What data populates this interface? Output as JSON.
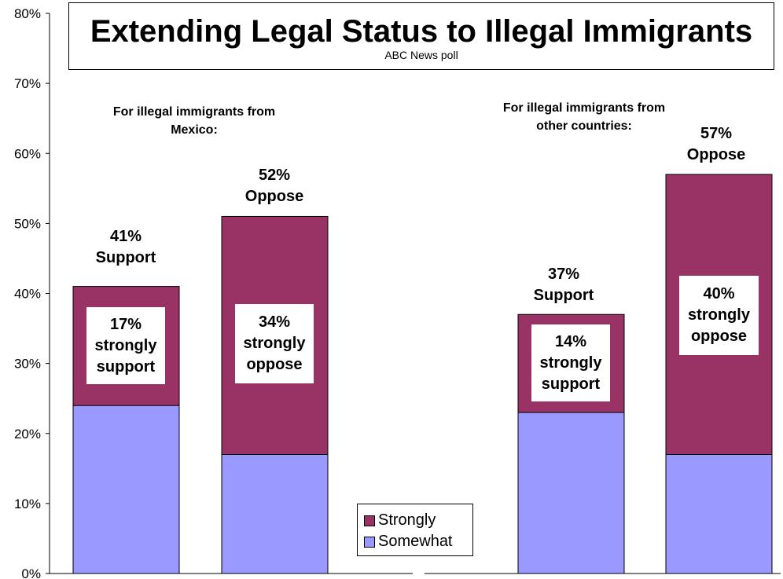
{
  "chart_data": {
    "type": "bar",
    "stacked": true,
    "title": "Extending Legal Status to Illegal Immigrants",
    "subtitle": "ABC News poll",
    "ylim": [
      0,
      80
    ],
    "yticks": [
      "0%",
      "10%",
      "20%",
      "30%",
      "40%",
      "50%",
      "60%",
      "70%",
      "80%"
    ],
    "grid": false,
    "legend_position": "bottom-center",
    "series": [
      {
        "name": "Somewhat",
        "color": "#9999ff",
        "values": [
          24,
          17,
          23,
          17
        ]
      },
      {
        "name": "Strongly",
        "color": "#993366",
        "values": [
          17,
          34,
          14,
          40
        ]
      }
    ],
    "groups": [
      {
        "label_line1": "For illegal immigrants from",
        "label_line2": "Mexico:"
      },
      {
        "label_line1": "For illegal immigrants from",
        "label_line2": "other countries:"
      }
    ],
    "bars": [
      {
        "total_pct": "41%",
        "total_word": "Support",
        "strong_pct": "17%",
        "strong_line2": "strongly",
        "strong_line3": "support"
      },
      {
        "total_pct": "52%",
        "total_word": "Oppose",
        "strong_pct": "34%",
        "strong_line2": "strongly",
        "strong_line3": "oppose"
      },
      {
        "total_pct": "37%",
        "total_word": "Support",
        "strong_pct": "14%",
        "strong_line2": "strongly",
        "strong_line3": "support"
      },
      {
        "total_pct": "57%",
        "total_word": "Oppose",
        "strong_pct": "40%",
        "strong_line2": "strongly",
        "strong_line3": "oppose"
      }
    ]
  }
}
